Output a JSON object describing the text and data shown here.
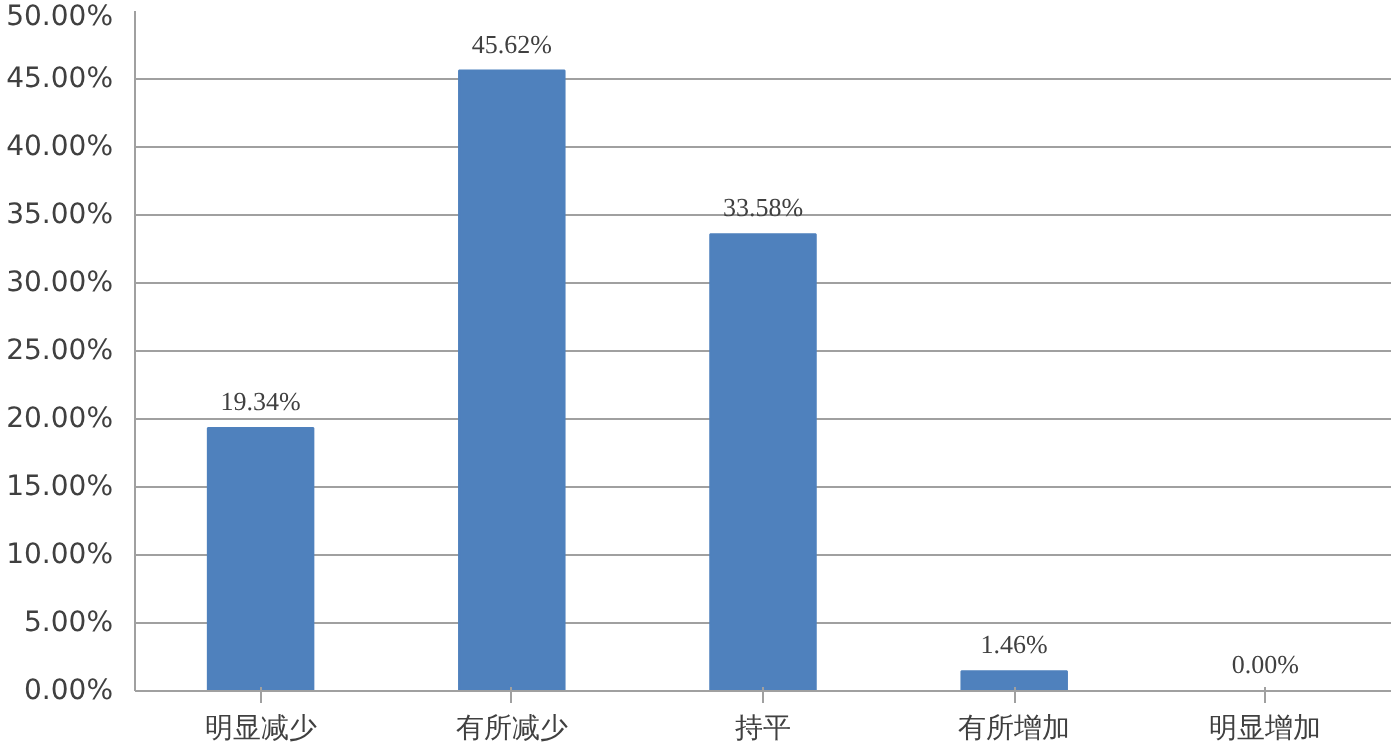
{
  "chart_data": {
    "type": "bar",
    "categories": [
      "明显减少",
      "有所减少",
      "持平",
      "有所增加",
      "明显增加"
    ],
    "values": [
      19.34,
      45.62,
      33.58,
      1.46,
      0.0
    ],
    "color": "#4f81bd",
    "ylim": [
      0,
      50
    ],
    "yticks": [
      {
        "value": 0,
        "label": "0.00%"
      },
      {
        "value": 5,
        "label": "5.00%"
      },
      {
        "value": 10,
        "label": "10.00%"
      },
      {
        "value": 15,
        "label": "15.00%"
      },
      {
        "value": 20,
        "label": "20.00%"
      },
      {
        "value": 25,
        "label": "25.00%"
      },
      {
        "value": 30,
        "label": "30.00%"
      },
      {
        "value": 35,
        "label": "35.00%"
      },
      {
        "value": 40,
        "label": "40.00%"
      },
      {
        "value": 45,
        "label": "45.00%"
      },
      {
        "value": 50,
        "label": "50.00%"
      }
    ],
    "value_labels": [
      "19.34%",
      "45.62%",
      "33.58%",
      "1.46%",
      "0.00%"
    ],
    "grid": "y"
  }
}
